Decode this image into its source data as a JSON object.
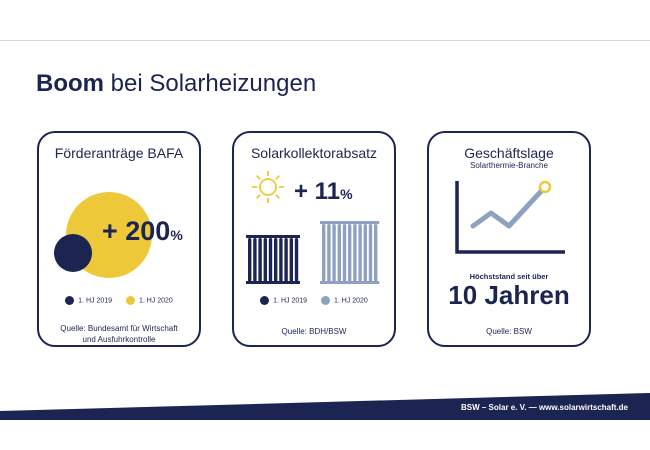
{
  "title": {
    "bold": "Boom",
    "rest": "bei Solarheizungen"
  },
  "colors": {
    "navy": "#1c2452",
    "yellow": "#edc93a",
    "grey_blue": "#8ea2bf",
    "white": "#ffffff"
  },
  "cards": {
    "bafa": {
      "title": "Förderanträge BAFA",
      "value": "+ 200",
      "unit": "%",
      "legend": [
        {
          "label": "1. HJ 2019",
          "color": "#1c2452"
        },
        {
          "label": "1. HJ 2020",
          "color": "#edc93a"
        }
      ],
      "source_line1": "Quelle: Bundesamt für Wirtschaft",
      "source_line2": "und Ausfuhrkontrolle",
      "icons": [
        "small-circle-icon",
        "large-circle-icon"
      ]
    },
    "collectors": {
      "title": "Solarkollektorabsatz",
      "value": "+ 11",
      "unit": "%",
      "legend": [
        {
          "label": "1. HJ 2019",
          "color": "#1c2452"
        },
        {
          "label": "1. HJ 2020",
          "color": "#8ea2bf"
        }
      ],
      "source": "Quelle: BDH/BSW",
      "icons": [
        "sun-icon",
        "radiator-icon"
      ]
    },
    "business": {
      "title": "Geschäftslage",
      "subtitle": "Solarthermie-Branche",
      "caption": "Höchststand seit über",
      "value": "10 Jahren",
      "source": "Quelle: BSW",
      "icons": [
        "line-chart-icon"
      ]
    }
  },
  "chart_data": [
    {
      "type": "bar",
      "title": "Förderanträge BAFA",
      "categories": [
        "1. HJ 2019",
        "1. HJ 2020"
      ],
      "values": [
        100,
        300
      ],
      "annotation": "+ 200 %",
      "xlabel": "",
      "ylabel": ""
    },
    {
      "type": "bar",
      "title": "Solarkollektorabsatz",
      "categories": [
        "1. HJ 2019",
        "1. HJ 2020"
      ],
      "values": [
        100,
        111
      ],
      "annotation": "+ 11 %",
      "xlabel": "",
      "ylabel": ""
    },
    {
      "type": "line",
      "title": "Geschäftslage",
      "subtitle": "Solarthermie-Branche",
      "x": [
        0,
        1,
        2,
        3,
        4
      ],
      "values": [
        2,
        4,
        2,
        5,
        8
      ],
      "annotation": "Höchststand seit über 10 Jahren"
    }
  ],
  "footer": {
    "text": "BSW – Solar e. V. — www.solarwirtschaft.de"
  }
}
